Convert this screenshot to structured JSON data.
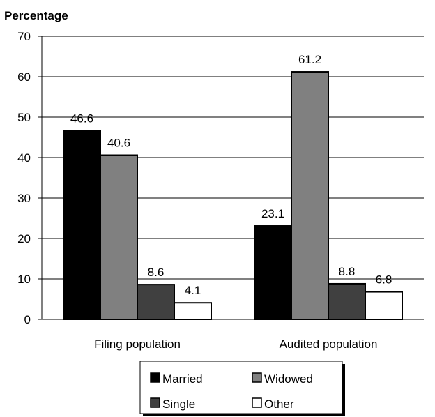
{
  "chart_data": {
    "type": "bar",
    "ylabel": "Percentage",
    "xlabel": "",
    "ylim": [
      0,
      70
    ],
    "yticks": [
      0,
      10,
      20,
      30,
      40,
      50,
      60,
      70
    ],
    "grid": true,
    "legend_position": "bottom",
    "categories": [
      "Filing population",
      "Audited population"
    ],
    "series": [
      {
        "name": "Married",
        "values": [
          46.6,
          23.1
        ],
        "color": "#000000"
      },
      {
        "name": "Widowed",
        "values": [
          40.6,
          61.2
        ],
        "color": "#808080"
      },
      {
        "name": "Single",
        "values": [
          8.6,
          8.8
        ],
        "color": "#404040"
      },
      {
        "name": "Other",
        "values": [
          4.1,
          6.8
        ],
        "color": "#ffffff"
      }
    ],
    "data_labels": [
      [
        "46.6",
        "23.1"
      ],
      [
        "40.6",
        "61.2"
      ],
      [
        "8.6",
        "8.8"
      ],
      [
        "4.1",
        "6.8"
      ]
    ]
  }
}
